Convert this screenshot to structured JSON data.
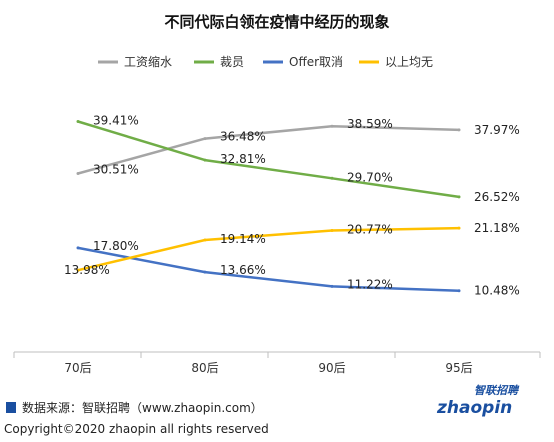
{
  "chart_data": {
    "type": "line",
    "title": "不同代际白领在疫情中经历的现象",
    "categories": [
      "70后",
      "80后",
      "90后",
      "95后"
    ],
    "ylim": [
      0,
      45
    ],
    "grid": false,
    "legend_position": "top",
    "series": [
      {
        "name": "工资缩水",
        "color": "#a5a5a5",
        "values": [
          30.51,
          36.48,
          38.59,
          37.97
        ],
        "labels": [
          "30.51%",
          "36.48%",
          "38.59%",
          "37.97%"
        ]
      },
      {
        "name": "裁员",
        "color": "#70ad47",
        "values": [
          39.41,
          32.81,
          29.7,
          26.52
        ],
        "labels": [
          "39.41%",
          "32.81%",
          "29.70%",
          "26.52%"
        ]
      },
      {
        "name": "Offer取消",
        "color": "#4472c4",
        "values": [
          17.8,
          13.66,
          11.22,
          10.48
        ],
        "labels": [
          "17.80%",
          "13.66%",
          "11.22%",
          "10.48%"
        ]
      },
      {
        "name": "以上均无",
        "color": "#ffc000",
        "values": [
          13.98,
          19.14,
          20.77,
          21.18
        ],
        "labels": [
          "13.98%",
          "19.14%",
          "20.77%",
          "21.18%"
        ]
      }
    ]
  },
  "footer": {
    "source": "数据来源：智联招聘（www.zhaopin.com）",
    "copyright": "Copyright©2020 zhaopin all rights reserved",
    "logo_text": "zhaopin",
    "logo_cn": "智联招聘",
    "accent": "#1a4fa0"
  }
}
